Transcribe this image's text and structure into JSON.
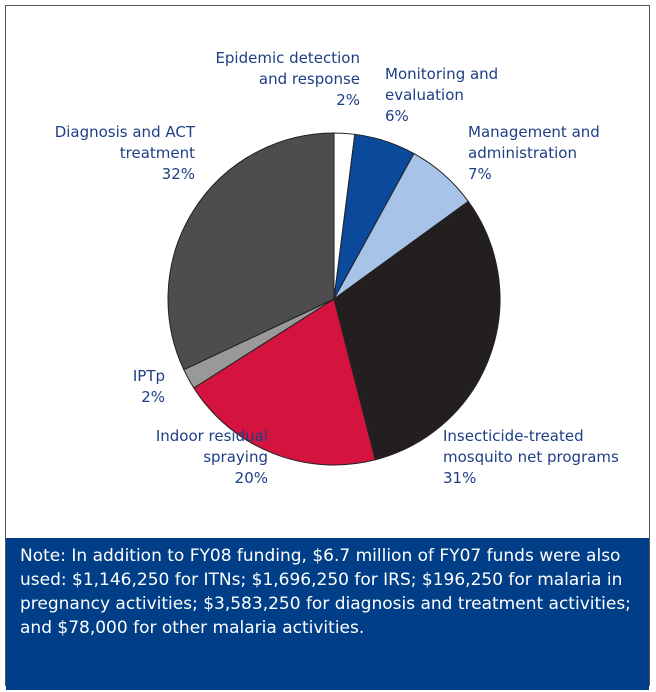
{
  "chart_data": {
    "type": "pie",
    "categories": [
      "Epidemic detection\nand response",
      "Monitoring and\nevaluation",
      "Management and\nadministration",
      "Insecticide-treated\nmosquito net programs",
      "Indoor residual\nspraying",
      "IPTp",
      "Diagnosis and ACT\ntreatment"
    ],
    "values": [
      2,
      6,
      7,
      31,
      20,
      2,
      32
    ],
    "value_labels": [
      "2%",
      "6%",
      "7%",
      "31%",
      "20%",
      "2%",
      "32%"
    ],
    "colors": [
      "#ffffff",
      "#0b4a9b",
      "#a8c3e8",
      "#231f20",
      "#d4133f",
      "#999999",
      "#4d4d4f"
    ],
    "note": "Note: In addition to FY08 funding, $6.7 million of FY07 funds were also used: $1,146,250 for ITNs; $1,696,250 for IRS; $196,250 for malaria in pregnancy activities; $3,583,250 for diagnosis and treatment activities; and $78,000 for other malaria activities."
  }
}
